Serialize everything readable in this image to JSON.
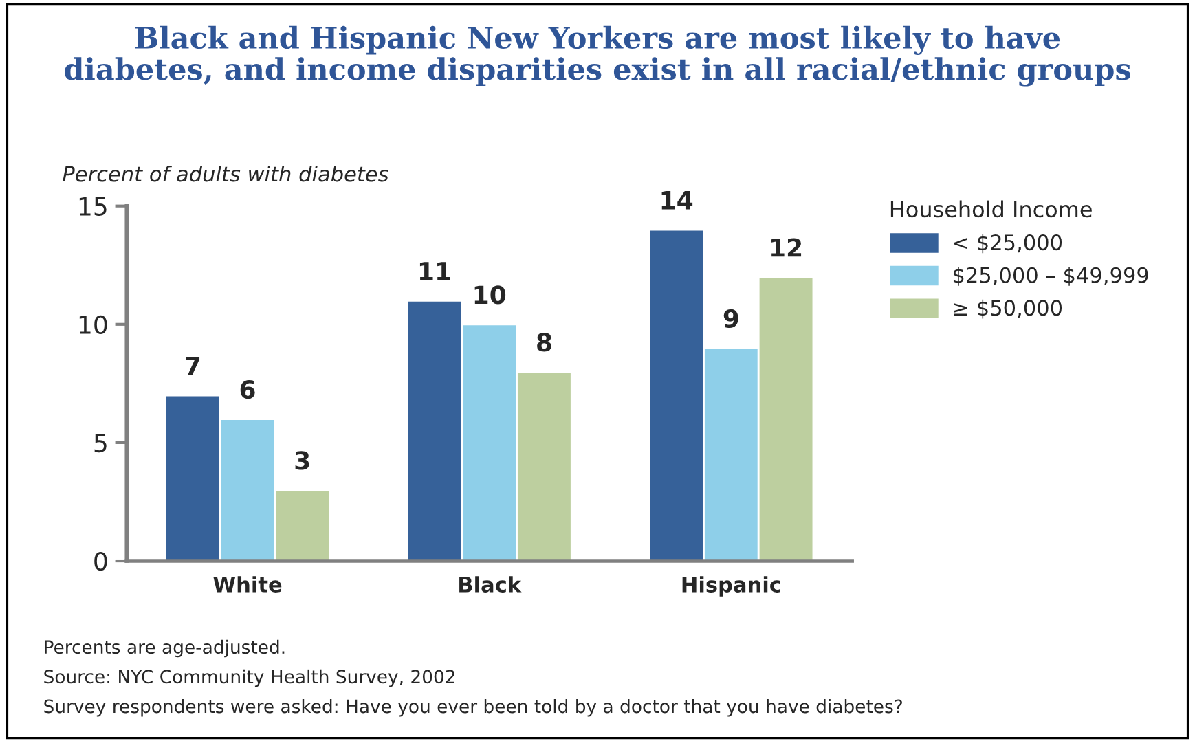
{
  "chart_data": {
    "type": "bar",
    "title": "Black and Hispanic New Yorkers are most likely to have\ndiabetes, and income disparities exist in all racial/ethnic groups",
    "ylabel": "Percent of adults with diabetes",
    "legend_title": "Household Income",
    "categories": [
      "White",
      "Black",
      "Hispanic"
    ],
    "series": [
      {
        "name": "< $25,000",
        "color": "#366199",
        "values": [
          7,
          11,
          14
        ]
      },
      {
        "name": "$25,000 – $49,999",
        "color": "#8ecfe9",
        "values": [
          6,
          10,
          9
        ]
      },
      {
        "name": "≥ $50,000",
        "color": "#bdcf9f",
        "values": [
          3,
          8,
          12
        ]
      }
    ],
    "ylim": [
      0,
      15
    ],
    "yticks": [
      0,
      5,
      10,
      15
    ],
    "data_labels": true,
    "grid": false,
    "legend": "right",
    "annotations": [
      "Percents are age-adjusted.",
      "Source: NYC Community Health Survey, 2002",
      "Survey respondents were asked: Have you ever been told by a doctor that you have diabetes?"
    ]
  }
}
